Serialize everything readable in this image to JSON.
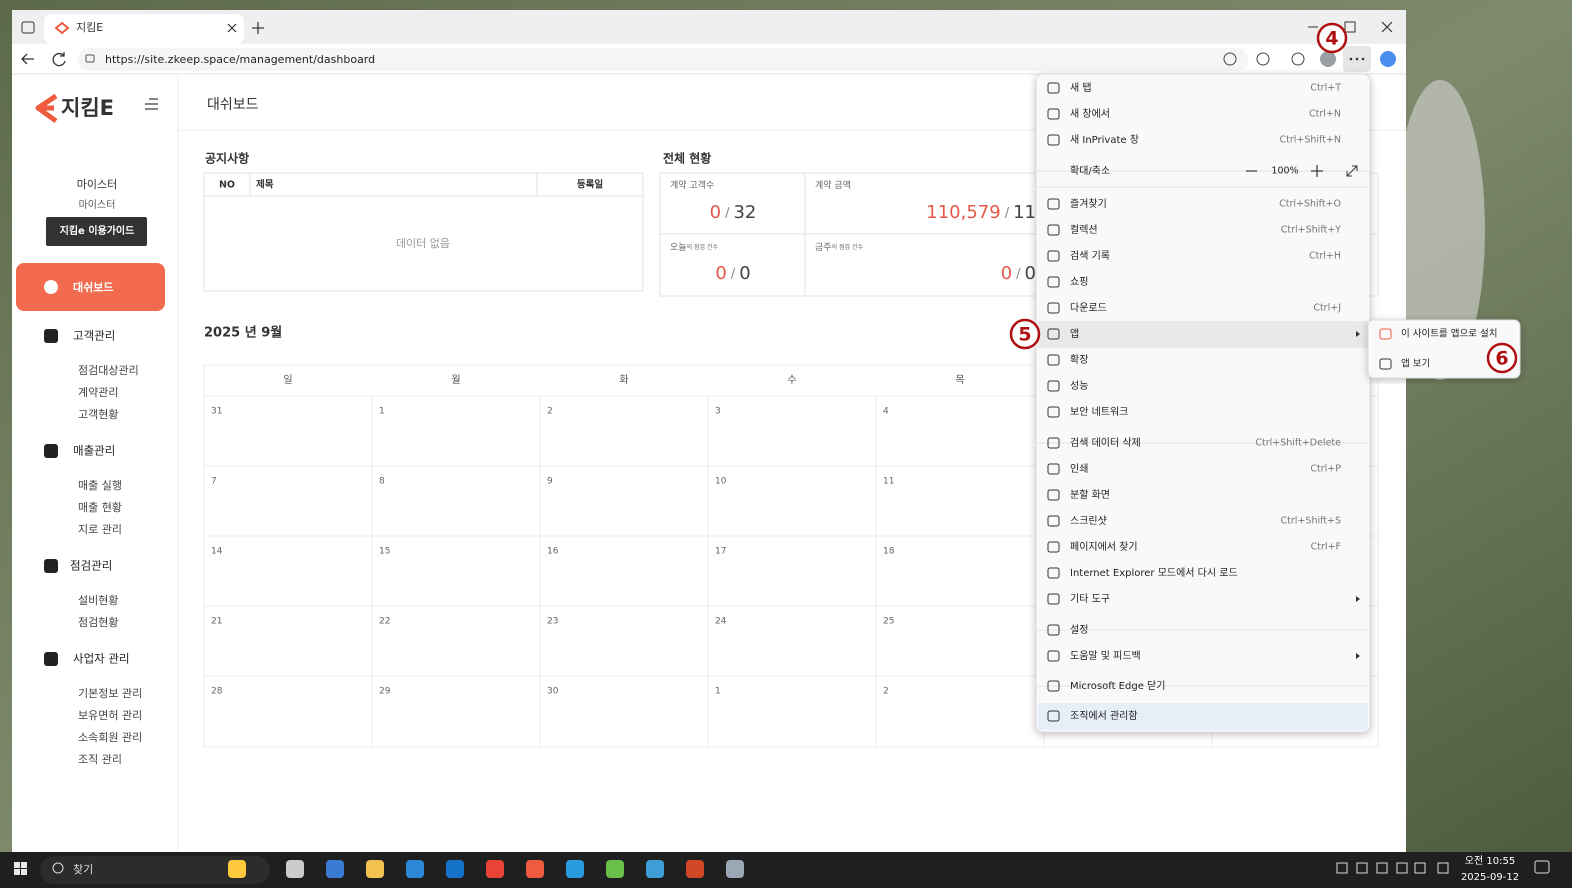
{
  "browser": {
    "tab_title": "지킴E",
    "url": "https://site.zkeep.space/management/dashboard"
  },
  "sidebar": {
    "logo": "지킴E",
    "user_name": "마이스터",
    "user_role": "마이스터",
    "guide_button": "지킴e 이용가이드",
    "active_menu": "대쉬보드",
    "groups": [
      {
        "title": "고객관리",
        "items": [
          "점검대상관리",
          "계약관리",
          "고객현황"
        ]
      },
      {
        "title": "매출관리",
        "items": [
          "매출 실행",
          "매출 현황",
          "지로 관리"
        ]
      },
      {
        "title": "점검관리",
        "items": [
          "설비현황",
          "점검현황"
        ]
      },
      {
        "title": "사업자 관리",
        "items": [
          "기본정보 관리",
          "보유면허 관리",
          "소속회원 관리",
          "조직 관리"
        ]
      }
    ]
  },
  "header": {
    "title": "대쉬보드"
  },
  "notice": {
    "title": "공지사항",
    "columns": [
      "NO",
      "제목",
      "등록일"
    ],
    "empty": "데이터 없음"
  },
  "status": {
    "title": "전체 현황",
    "separator": "/",
    "cards": [
      {
        "label": "계약 고객수",
        "value": "0",
        "total": "32"
      },
      {
        "label": "계약 금액",
        "value": "110,579",
        "total": "11"
      },
      {
        "label": "오늘",
        "label_suffix": "의 점검 건수",
        "value": "0",
        "total": "0"
      },
      {
        "label": "금주",
        "label_suffix": "의 점검 건수",
        "value": "0",
        "total": "0"
      }
    ]
  },
  "calendar": {
    "title": "2025 년 9월",
    "weekdays": [
      "일",
      "월",
      "화",
      "수",
      "목"
    ],
    "weeks": [
      [
        "31",
        "1",
        "2",
        "3",
        "4"
      ],
      [
        "7",
        "8",
        "9",
        "10",
        "11"
      ],
      [
        "14",
        "15",
        "16",
        "17",
        "18"
      ],
      [
        "21",
        "22",
        "23",
        "24",
        "25"
      ],
      [
        "28",
        "29",
        "30",
        "1",
        "2"
      ]
    ]
  },
  "edge_menu": {
    "zoom": {
      "label": "확대/축소",
      "value": "100%"
    },
    "groups": [
      [
        {
          "label": "새 탭",
          "shortcut": "Ctrl+T"
        },
        {
          "label": "새 창에서",
          "shortcut": "Ctrl+N"
        },
        {
          "label": "새 InPrivate 창",
          "shortcut": "Ctrl+Shift+N"
        }
      ],
      [
        {
          "label": "즐겨찾기",
          "shortcut": "Ctrl+Shift+O"
        },
        {
          "label": "컬렉션",
          "shortcut": "Ctrl+Shift+Y"
        },
        {
          "label": "검색 기록",
          "shortcut": "Ctrl+H"
        },
        {
          "label": "쇼핑"
        },
        {
          "label": "다운로드",
          "shortcut": "Ctrl+J"
        },
        {
          "label": "앱",
          "has_submenu": true,
          "highlighted": true
        },
        {
          "label": "확장"
        },
        {
          "label": "성능"
        },
        {
          "label": "보안 네트워크"
        }
      ],
      [
        {
          "label": "검색 데이터 삭제",
          "shortcut": "Ctrl+Shift+Delete"
        },
        {
          "label": "인쇄",
          "shortcut": "Ctrl+P"
        },
        {
          "label": "분할 화면"
        },
        {
          "label": "스크린샷",
          "shortcut": "Ctrl+Shift+S"
        },
        {
          "label": "페이지에서 찾기",
          "shortcut": "Ctrl+F"
        },
        {
          "label": "Internet Explorer 모드에서 다시 로드"
        },
        {
          "label": "기타 도구",
          "has_submenu": true
        }
      ],
      [
        {
          "label": "설정"
        },
        {
          "label": "도움말 및 피드백",
          "has_submenu": true
        }
      ],
      [
        {
          "label": "Microsoft Edge 닫기"
        }
      ],
      [
        {
          "label": "조직에서 관리함",
          "highlighted": true
        }
      ]
    ]
  },
  "apps_submenu": {
    "items": [
      "이 사이트를 앱으로 설치",
      "앱 보기"
    ]
  },
  "annotations": [
    "4",
    "5",
    "6"
  ],
  "taskbar": {
    "search": "찾기",
    "time": "오전 10:55",
    "date": "2025-09-12"
  }
}
